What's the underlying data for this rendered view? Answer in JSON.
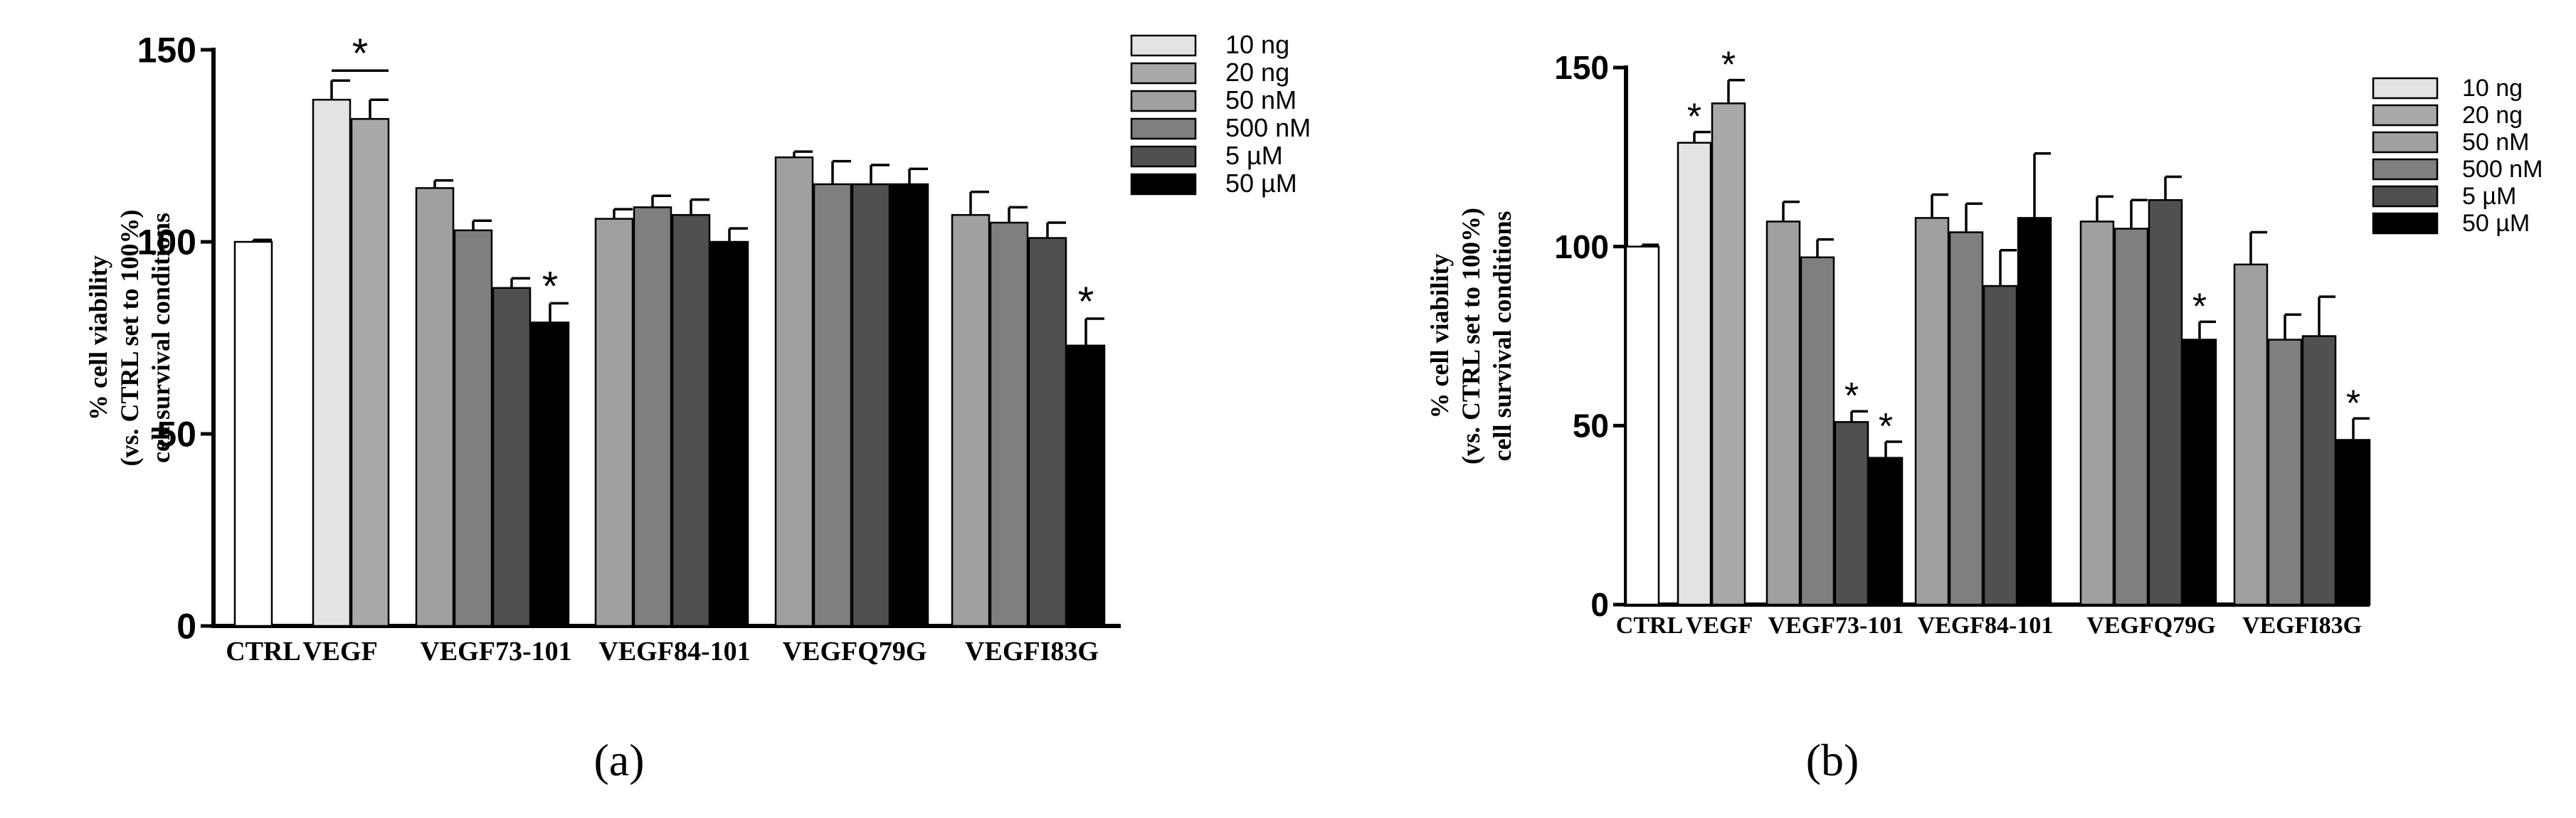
{
  "colors": {
    "10 ng": "#e3e3e3",
    "20 ng": "#a9a9a9",
    "50 nM": "#a0a0a0",
    "500 nM": "#7f7f7f",
    "5 µM": "#505050",
    "50 µM": "#000000",
    "ctrl": "#ffffff"
  },
  "chart_data": [
    {
      "panel_label": "(a)",
      "type": "bar",
      "ylabel": [
        "% cell viability",
        "(vs. CTRL set to 100%)",
        "cell survival conditions"
      ],
      "ylim": [
        0,
        150
      ],
      "yticks": [
        "0",
        "50",
        "100",
        "150"
      ],
      "legend": [
        "10 ng",
        "20 ng",
        "50 nM",
        "500 nM",
        "5 µM",
        "50 µM"
      ],
      "legend_position": "top-right",
      "groups": [
        {
          "label": "CTRL",
          "bars": [
            {
              "series": "ctrl",
              "value": 100,
              "err": 0.5
            }
          ]
        },
        {
          "label": "VEGF",
          "bars": [
            {
              "series": "10 ng",
              "value": 137,
              "err": 5
            },
            {
              "series": "20 ng",
              "value": 132,
              "err": 5
            }
          ],
          "group_star": "*"
        },
        {
          "label": "VEGF73-101",
          "bars": [
            {
              "series": "50 nM",
              "value": 114,
              "err": 2
            },
            {
              "series": "500 nM",
              "value": 103,
              "err": 2.5
            },
            {
              "series": "5 µM",
              "value": 88,
              "err": 2.5
            },
            {
              "series": "50 µM",
              "value": 79,
              "err": 5,
              "star": "*"
            }
          ]
        },
        {
          "label": "VEGF84-101",
          "bars": [
            {
              "series": "50 nM",
              "value": 106,
              "err": 2.5
            },
            {
              "series": "500 nM",
              "value": 109,
              "err": 3
            },
            {
              "series": "5 µM",
              "value": 107,
              "err": 4
            },
            {
              "series": "50 µM",
              "value": 100,
              "err": 3.5
            }
          ]
        },
        {
          "label": "VEGFQ79G",
          "bars": [
            {
              "series": "50 nM",
              "value": 122,
              "err": 1.5
            },
            {
              "series": "500 nM",
              "value": 115,
              "err": 6
            },
            {
              "series": "5 µM",
              "value": 115,
              "err": 5
            },
            {
              "series": "50 µM",
              "value": 115,
              "err": 4
            }
          ]
        },
        {
          "label": "VEGFI83G",
          "bars": [
            {
              "series": "50 nM",
              "value": 107,
              "err": 6
            },
            {
              "series": "500 nM",
              "value": 105,
              "err": 4
            },
            {
              "series": "5 µM",
              "value": 101,
              "err": 4
            },
            {
              "series": "50 µM",
              "value": 73,
              "err": 7,
              "star": "*"
            }
          ]
        }
      ]
    },
    {
      "panel_label": "(b)",
      "type": "bar",
      "ylabel": [
        "% cell viability",
        "(vs. CTRL set to 100%)",
        "cell survival conditions"
      ],
      "ylim": [
        0,
        150
      ],
      "yticks": [
        "0",
        "50",
        "100",
        "150"
      ],
      "legend": [
        "10 ng",
        "20 ng",
        "50 nM",
        "500 nM",
        "5 µM",
        "50 µM"
      ],
      "legend_position": "top-right",
      "groups": [
        {
          "label": "CTRL",
          "bars": [
            {
              "series": "ctrl",
              "value": 100,
              "err": 0.5
            }
          ]
        },
        {
          "label": "VEGF",
          "bars": [
            {
              "series": "10 ng",
              "value": 129,
              "err": 3,
              "star": "*"
            },
            {
              "series": "20 ng",
              "value": 140,
              "err": 6.5,
              "star": "*"
            }
          ]
        },
        {
          "label": "VEGF73-101",
          "bars": [
            {
              "series": "50 nM",
              "value": 107,
              "err": 5.5
            },
            {
              "series": "500 nM",
              "value": 97,
              "err": 5
            },
            {
              "series": "5 µM",
              "value": 51,
              "err": 3,
              "star": "*"
            },
            {
              "series": "50 µM",
              "value": 41,
              "err": 4.5,
              "star": "*"
            }
          ]
        },
        {
          "label": "VEGF84-101",
          "bars": [
            {
              "series": "50 nM",
              "value": 108,
              "err": 6.5
            },
            {
              "series": "500 nM",
              "value": 104,
              "err": 8
            },
            {
              "series": "5 µM",
              "value": 89,
              "err": 10
            },
            {
              "series": "50 µM",
              "value": 108,
              "err": 18
            }
          ]
        },
        {
          "label": "VEGFQ79G",
          "bars": [
            {
              "series": "50 nM",
              "value": 107,
              "err": 7
            },
            {
              "series": "500 nM",
              "value": 105,
              "err": 8
            },
            {
              "series": "5 µM",
              "value": 113,
              "err": 6.5
            },
            {
              "series": "50 µM",
              "value": 74,
              "err": 5,
              "star": "*"
            }
          ]
        },
        {
          "label": "VEGFI83G",
          "bars": [
            {
              "series": "50 nM",
              "value": 95,
              "err": 9
            },
            {
              "series": "500 nM",
              "value": 74,
              "err": 7
            },
            {
              "series": "5 µM",
              "value": 75,
              "err": 11
            },
            {
              "series": "50 µM",
              "value": 46,
              "err": 6,
              "star": "*"
            }
          ]
        }
      ]
    }
  ]
}
